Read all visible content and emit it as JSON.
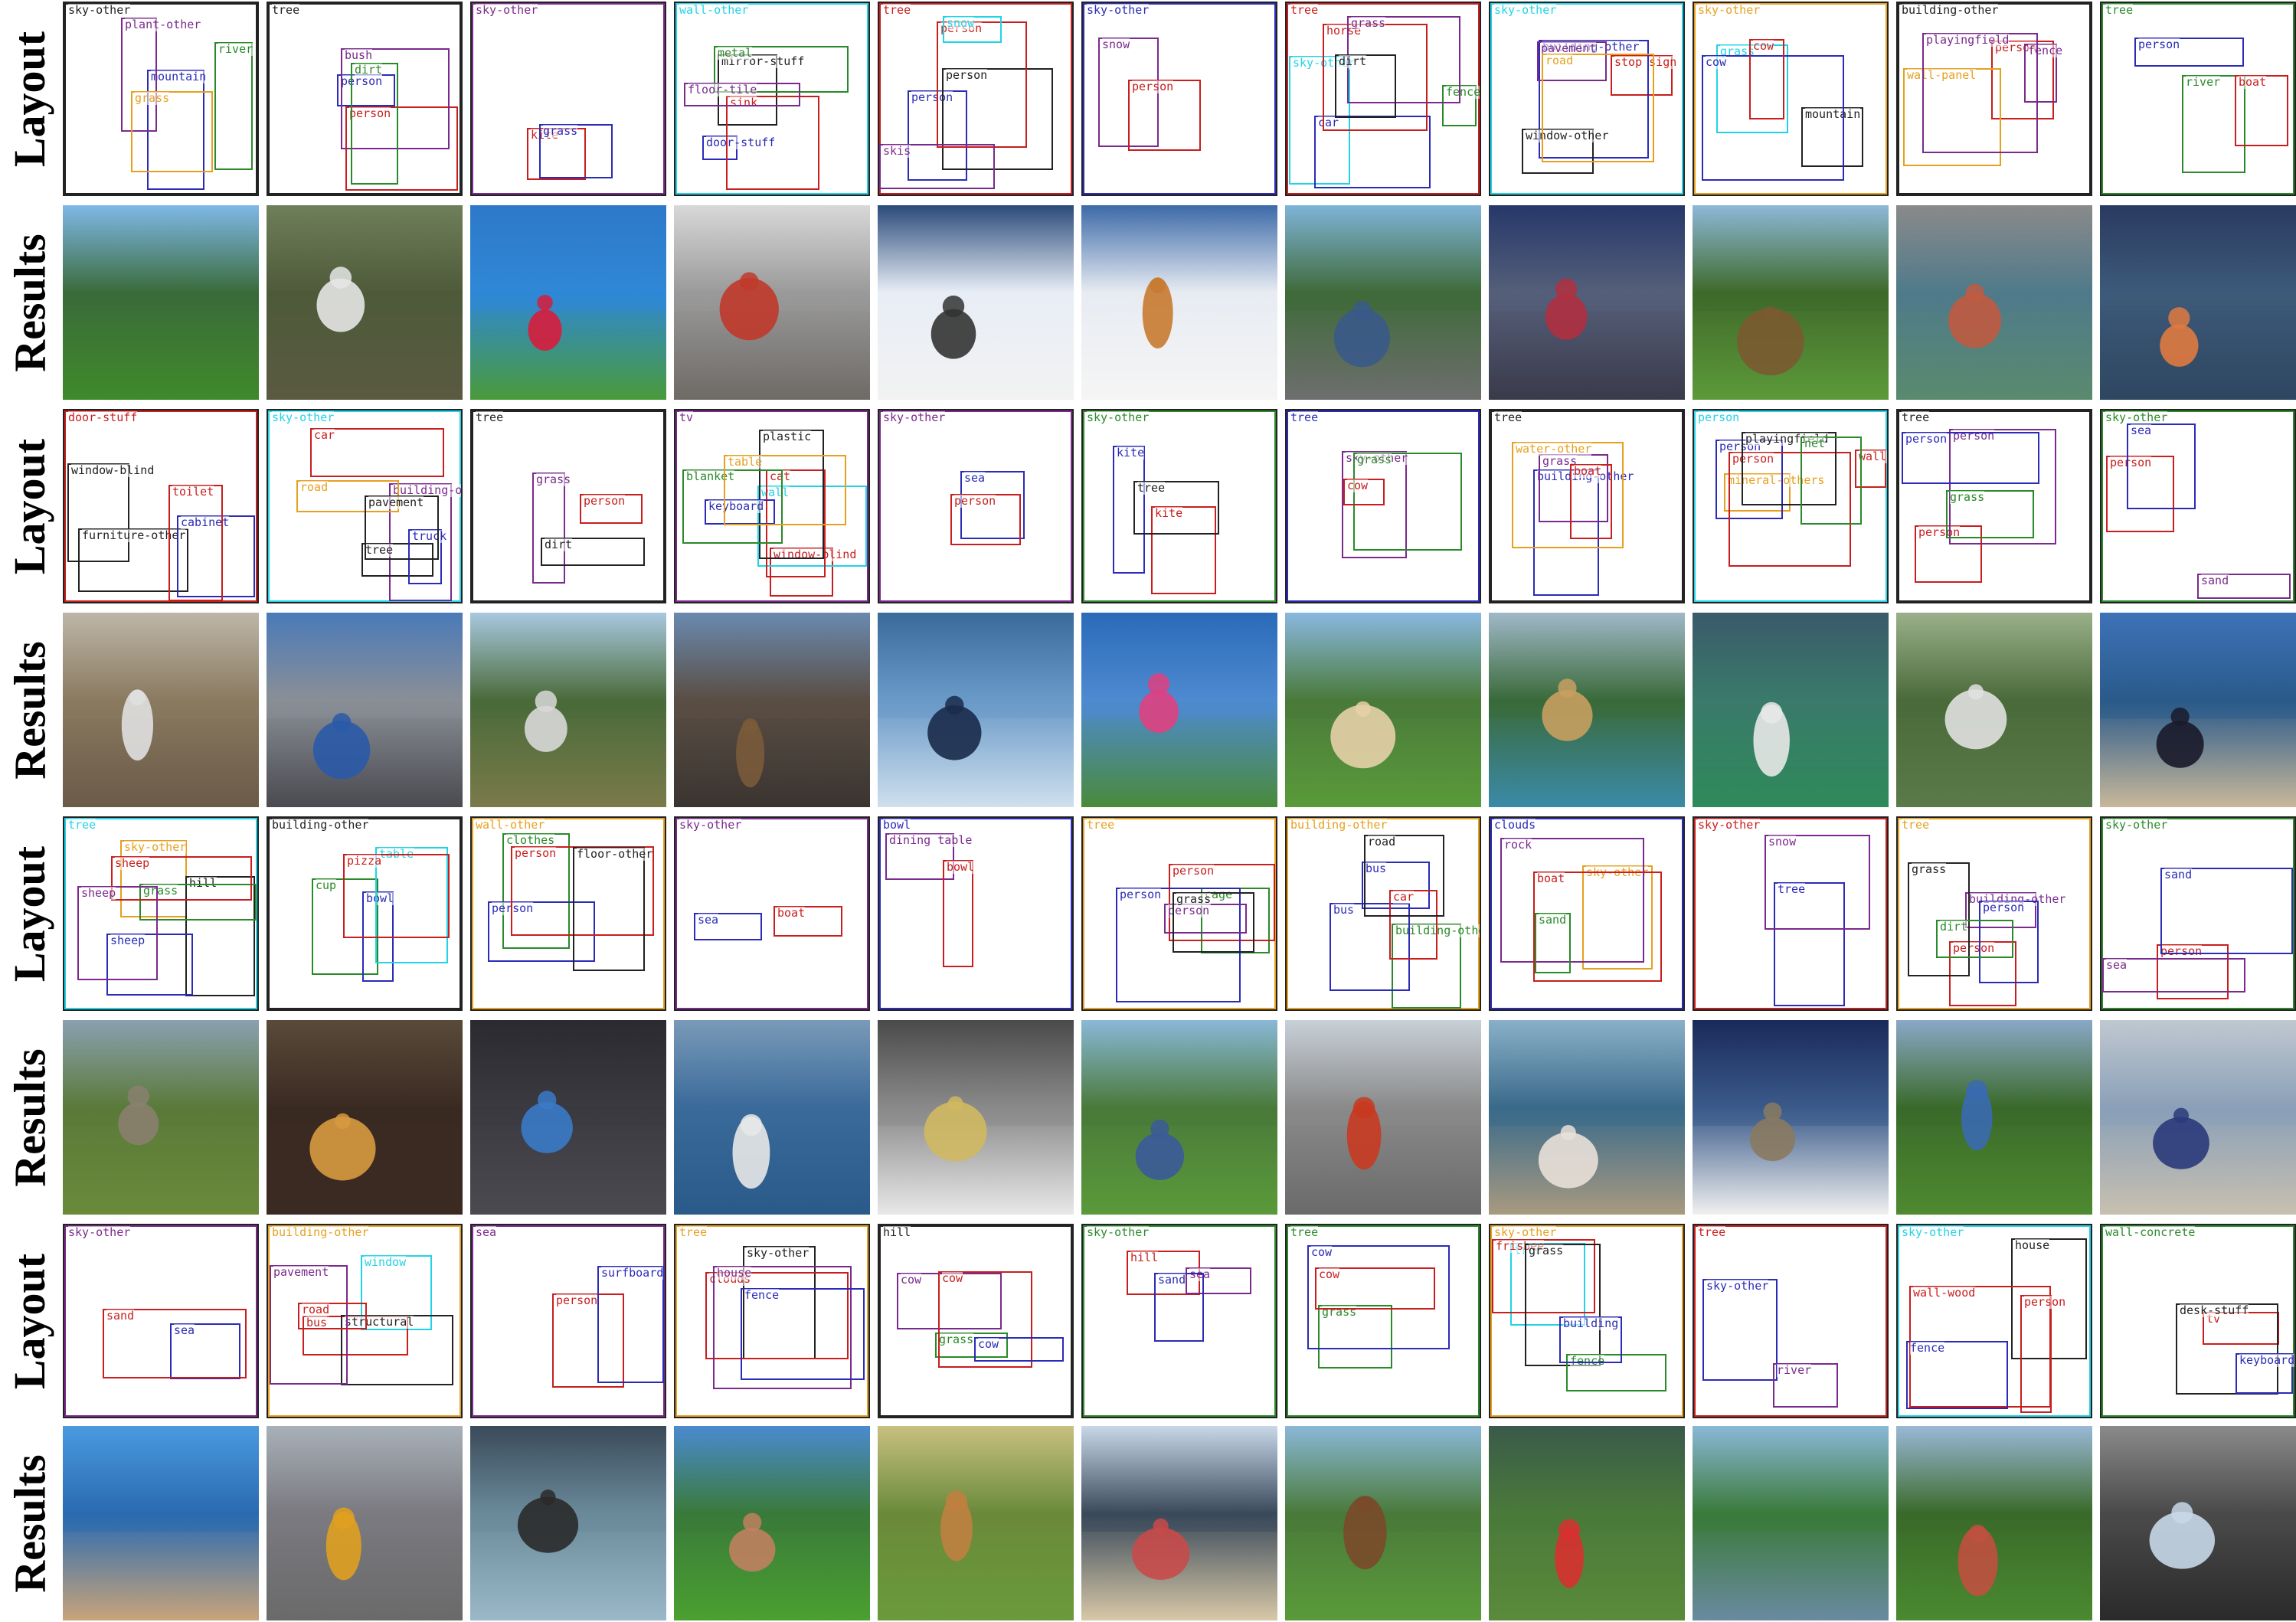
{
  "row_labels": [
    "Layout",
    "Results",
    "Layout",
    "Results",
    "Layout",
    "Results",
    "Layout",
    "Results"
  ],
  "colors": {
    "cyan": "#22d3e6",
    "red": "#c81e1e",
    "blue": "#2b2bb8",
    "purple": "#7a2a8c",
    "green": "#2a8a2a",
    "orange": "#e6a020",
    "black": "#222222"
  },
  "layouts": [
    [
      [
        [
          "sky-other",
          "black"
        ],
        [
          "mountain",
          "blue"
        ],
        [
          "plant-other",
          "purple"
        ],
        [
          "river",
          "green"
        ],
        [
          "grass",
          "orange"
        ]
      ],
      [
        [
          "tree",
          "black"
        ],
        [
          "person",
          "blue"
        ],
        [
          "person",
          "red"
        ],
        [
          "bush",
          "purple"
        ],
        [
          "dirt",
          "green"
        ]
      ],
      [
        [
          "sky-other",
          "purple"
        ],
        [
          "kite",
          "red"
        ],
        [
          "grass",
          "blue"
        ]
      ],
      [
        [
          "wall-other",
          "cyan"
        ],
        [
          "mirror-stuff",
          "black"
        ],
        [
          "door-stuff",
          "blue"
        ],
        [
          "metal",
          "green"
        ],
        [
          "sink",
          "red"
        ],
        [
          "floor-tile",
          "purple"
        ]
      ],
      [
        [
          "tree",
          "red"
        ],
        [
          "person",
          "blue"
        ],
        [
          "person",
          "black"
        ],
        [
          "person",
          "red"
        ],
        [
          "snow",
          "cyan"
        ],
        [
          "skis",
          "purple"
        ]
      ],
      [
        [
          "sky-other",
          "blue"
        ],
        [
          "snow",
          "purple"
        ],
        [
          "person",
          "red"
        ]
      ],
      [
        [
          "tree",
          "red"
        ],
        [
          "sky-other",
          "cyan"
        ],
        [
          "fence",
          "green"
        ],
        [
          "car",
          "blue"
        ],
        [
          "horse",
          "red"
        ],
        [
          "grass",
          "purple"
        ],
        [
          "dirt",
          "black"
        ]
      ],
      [
        [
          "sky-other",
          "cyan"
        ],
        [
          "stop sign",
          "red"
        ],
        [
          "building-other",
          "blue"
        ],
        [
          "window-other",
          "black"
        ],
        [
          "pavement",
          "purple"
        ],
        [
          "road",
          "orange"
        ]
      ],
      [
        [
          "sky-other",
          "orange"
        ],
        [
          "mountain",
          "black"
        ],
        [
          "grass",
          "cyan"
        ],
        [
          "cow",
          "blue"
        ],
        [
          "cow",
          "red"
        ]
      ],
      [
        [
          "building-other",
          "black"
        ],
        [
          "person",
          "red"
        ],
        [
          "fence",
          "purple"
        ],
        [
          "wall-panel",
          "orange"
        ],
        [
          "playingfield",
          "purple"
        ]
      ],
      [
        [
          "tree",
          "green"
        ],
        [
          "river",
          "green"
        ],
        [
          "person",
          "blue"
        ],
        [
          "boat",
          "red"
        ]
      ]
    ],
    [
      [
        [
          "door-stuff",
          "red"
        ],
        [
          "window-blind",
          "black"
        ],
        [
          "furniture-other",
          "black"
        ],
        [
          "cabinet",
          "blue"
        ],
        [
          "toilet",
          "red"
        ]
      ],
      [
        [
          "sky-other",
          "cyan"
        ],
        [
          "building-other",
          "purple"
        ],
        [
          "tree",
          "black"
        ],
        [
          "truck",
          "blue"
        ],
        [
          "car",
          "red"
        ],
        [
          "road",
          "orange"
        ],
        [
          "pavement",
          "black"
        ]
      ],
      [
        [
          "tree",
          "black"
        ],
        [
          "person",
          "red"
        ],
        [
          "grass",
          "purple"
        ],
        [
          "dirt",
          "black"
        ]
      ],
      [
        [
          "tv",
          "purple"
        ],
        [
          "window-blind",
          "red"
        ],
        [
          "wall",
          "cyan"
        ],
        [
          "cat",
          "red"
        ],
        [
          "plastic",
          "black"
        ],
        [
          "blanket",
          "green"
        ],
        [
          "keyboard",
          "blue"
        ],
        [
          "table",
          "orange"
        ]
      ],
      [
        [
          "sky-other",
          "purple"
        ],
        [
          "sea",
          "blue"
        ],
        [
          "person",
          "red"
        ]
      ],
      [
        [
          "sky-other",
          "green"
        ],
        [
          "kite",
          "red"
        ],
        [
          "kite",
          "blue"
        ],
        [
          "tree",
          "black"
        ]
      ],
      [
        [
          "tree",
          "blue"
        ],
        [
          "sky-other",
          "purple"
        ],
        [
          "grass",
          "green"
        ],
        [
          "cow",
          "red"
        ]
      ],
      [
        [
          "tree",
          "black"
        ],
        [
          "building-other",
          "blue"
        ],
        [
          "grass",
          "purple"
        ],
        [
          "water-other",
          "orange"
        ],
        [
          "boat",
          "red"
        ]
      ],
      [
        [
          "person",
          "cyan"
        ],
        [
          "mineral-others",
          "orange"
        ],
        [
          "wall-other",
          "red"
        ],
        [
          "person",
          "blue"
        ],
        [
          "person",
          "red"
        ],
        [
          "playingfield",
          "black"
        ],
        [
          "net",
          "green"
        ]
      ],
      [
        [
          "tree",
          "black"
        ],
        [
          "person",
          "red"
        ],
        [
          "person",
          "purple"
        ],
        [
          "person",
          "blue"
        ],
        [
          "grass",
          "green"
        ]
      ],
      [
        [
          "sky-other",
          "green"
        ],
        [
          "person",
          "red"
        ],
        [
          "sea",
          "blue"
        ],
        [
          "sand",
          "purple"
        ]
      ]
    ],
    [
      [
        [
          "tree",
          "cyan"
        ],
        [
          "sky-other",
          "orange"
        ],
        [
          "hill",
          "black"
        ],
        [
          "grass",
          "green"
        ],
        [
          "sheep",
          "red"
        ],
        [
          "sheep",
          "blue"
        ],
        [
          "sheep",
          "purple"
        ]
      ],
      [
        [
          "building-other",
          "black"
        ],
        [
          "cup",
          "green"
        ],
        [
          "bowl",
          "blue"
        ],
        [
          "table",
          "cyan"
        ],
        [
          "pizza",
          "red"
        ]
      ],
      [
        [
          "wall-other",
          "orange"
        ],
        [
          "clothes",
          "green"
        ],
        [
          "person",
          "blue"
        ],
        [
          "person",
          "red"
        ],
        [
          "floor-other",
          "black"
        ]
      ],
      [
        [
          "sky-other",
          "purple"
        ],
        [
          "sea",
          "blue"
        ],
        [
          "boat",
          "red"
        ]
      ],
      [
        [
          "bowl",
          "blue"
        ],
        [
          "dining table",
          "purple"
        ],
        [
          "bowl",
          "red"
        ]
      ],
      [
        [
          "tree",
          "orange"
        ],
        [
          "cage",
          "green"
        ],
        [
          "person",
          "red"
        ],
        [
          "person",
          "blue"
        ],
        [
          "person",
          "purple"
        ],
        [
          "grass",
          "black"
        ]
      ],
      [
        [
          "building-other",
          "orange"
        ],
        [
          "building-other",
          "green"
        ],
        [
          "bus",
          "blue"
        ],
        [
          "bus",
          "blue"
        ],
        [
          "car",
          "red"
        ],
        [
          "road",
          "black"
        ]
      ],
      [
        [
          "clouds",
          "blue"
        ],
        [
          "sky-other",
          "orange"
        ],
        [
          "rock",
          "purple"
        ],
        [
          "sand",
          "green"
        ],
        [
          "boat",
          "red"
        ]
      ],
      [
        [
          "sky-other",
          "red"
        ],
        [
          "tree",
          "blue"
        ],
        [
          "snow",
          "purple"
        ]
      ],
      [
        [
          "tree",
          "orange"
        ],
        [
          "building-other",
          "purple"
        ],
        [
          "person",
          "red"
        ],
        [
          "grass",
          "black"
        ],
        [
          "person",
          "blue"
        ],
        [
          "dirt",
          "green"
        ]
      ],
      [
        [
          "sky-other",
          "green"
        ],
        [
          "person",
          "red"
        ],
        [
          "sea",
          "purple"
        ],
        [
          "sand",
          "blue"
        ]
      ]
    ],
    [
      [
        [
          "sky-other",
          "purple"
        ],
        [
          "sea",
          "blue"
        ],
        [
          "sand",
          "red"
        ]
      ],
      [
        [
          "building-other",
          "orange"
        ],
        [
          "window",
          "cyan"
        ],
        [
          "bus",
          "red"
        ],
        [
          "structural",
          "black"
        ],
        [
          "pavement",
          "purple"
        ],
        [
          "road",
          "red"
        ]
      ],
      [
        [
          "sea",
          "purple"
        ],
        [
          "person",
          "red"
        ],
        [
          "surfboard",
          "blue"
        ]
      ],
      [
        [
          "tree",
          "orange"
        ],
        [
          "sky-other",
          "black"
        ],
        [
          "clouds",
          "red"
        ],
        [
          "house",
          "purple"
        ],
        [
          "fence",
          "blue"
        ]
      ],
      [
        [
          "hill",
          "black"
        ],
        [
          "grass",
          "green"
        ],
        [
          "cow",
          "purple"
        ],
        [
          "cow",
          "red"
        ],
        [
          "cow",
          "blue"
        ]
      ],
      [
        [
          "sky-other",
          "green"
        ],
        [
          "hill",
          "red"
        ],
        [
          "sea",
          "purple"
        ],
        [
          "sand",
          "blue"
        ]
      ],
      [
        [
          "tree",
          "green"
        ],
        [
          "grass",
          "green"
        ],
        [
          "cow",
          "blue"
        ],
        [
          "cow",
          "red"
        ]
      ],
      [
        [
          "sky-other",
          "orange"
        ],
        [
          "tree",
          "cyan"
        ],
        [
          "frisbee",
          "red"
        ],
        [
          "grass",
          "black"
        ],
        [
          "fence",
          "green"
        ],
        [
          "building",
          "blue"
        ]
      ],
      [
        [
          "tree",
          "red"
        ],
        [
          "sky-other",
          "blue"
        ],
        [
          "river",
          "purple"
        ]
      ],
      [
        [
          "sky-other",
          "cyan"
        ],
        [
          "house",
          "black"
        ],
        [
          "wall-wood",
          "red"
        ],
        [
          "fence",
          "blue"
        ],
        [
          "person",
          "red"
        ]
      ],
      [
        [
          "wall-concrete",
          "green"
        ],
        [
          "tv",
          "red"
        ],
        [
          "desk-stuff",
          "black"
        ],
        [
          "keyboard",
          "blue"
        ]
      ]
    ]
  ],
  "photos": [
    [
      {
        "sky": "#7fb8e8",
        "mid": "#3a6b3a",
        "ground": "#3f8a2a",
        "subject": ""
      },
      {
        "sky": "#6f7f5a",
        "mid": "#4e5a3a",
        "ground": "#5a5a40",
        "subject": "#e6e6e6"
      },
      {
        "sky": "#2e78c9",
        "mid": "#2f88d6",
        "ground": "#4a9a3a",
        "subject": "#d81c3c"
      },
      {
        "sky": "#d8d8d8",
        "mid": "#9a9a9a",
        "ground": "#6e6a66",
        "subject": "#c0392b"
      },
      {
        "sky": "#2a4a7a",
        "mid": "#e8eef6",
        "ground": "#f2f2f2",
        "subject": "#333333"
      },
      {
        "sky": "#3c6aa8",
        "mid": "#e8ecf2",
        "ground": "#f5f5f5",
        "subject": "#c87a30"
      },
      {
        "sky": "#7fb4d8",
        "mid": "#3f6a3a",
        "ground": "#6e6e6e",
        "subject": "#3a5a8a"
      },
      {
        "sky": "#26386a",
        "mid": "#555f7a",
        "ground": "#3a3a4a",
        "subject": "#b03040"
      },
      {
        "sky": "#8eb8d8",
        "mid": "#3e6a2a",
        "ground": "#5d9a3a",
        "subject": "#7a5a30"
      },
      {
        "sky": "#8a8a8a",
        "mid": "#4f7a8a",
        "ground": "#5a8a6e",
        "subject": "#c05a40"
      },
      {
        "sky": "#2a3a60",
        "mid": "#3d5a7a",
        "ground": "#2e4660",
        "subject": "#e07a40"
      }
    ],
    [
      {
        "sky": "#bdb6a8",
        "mid": "#8a7a60",
        "ground": "#6a5a48",
        "subject": "#e0e0e0"
      },
      {
        "sky": "#4a7ab8",
        "mid": "#8a8f96",
        "ground": "#4a4a50",
        "subject": "#2a5aa8"
      },
      {
        "sky": "#a8c8e0",
        "mid": "#4a6a3a",
        "ground": "#7a7a4a",
        "subject": "#d8d8d8"
      },
      {
        "sky": "#6a8ab0",
        "mid": "#5a4e44",
        "ground": "#3a3430",
        "subject": "#7a5a3a"
      },
      {
        "sky": "#3a6a9a",
        "mid": "#6a9ac8",
        "ground": "#cfe0ee",
        "subject": "#1a2a4a"
      },
      {
        "sky": "#2a6ab8",
        "mid": "#4e8ad0",
        "ground": "#4a8a3a",
        "subject": "#e04080"
      },
      {
        "sky": "#8ab8e0",
        "mid": "#4a7a3a",
        "ground": "#5a9a3a",
        "subject": "#e6d0a8"
      },
      {
        "sky": "#a0b8c8",
        "mid": "#3a6a3a",
        "ground": "#3a8aa8",
        "subject": "#c8a060"
      },
      {
        "sky": "#3a5a6a",
        "mid": "#3a7a6a",
        "ground": "#2e8a5a",
        "subject": "#e8e8e8"
      },
      {
        "sky": "#9ab08a",
        "mid": "#4a6a3a",
        "ground": "#5a7a4a",
        "subject": "#e0e0e0"
      },
      {
        "sky": "#3e72b8",
        "mid": "#2a5a8a",
        "ground": "#c8b89a",
        "subject": "#1a1a2a"
      }
    ],
    [
      {
        "sky": "#8aa0b0",
        "mid": "#5a7a3a",
        "ground": "#6a8a3a",
        "subject": "#8a8070"
      },
      {
        "sky": "#5a4a3a",
        "mid": "#3a2a22",
        "ground": "#3a2a22",
        "subject": "#d89a40"
      },
      {
        "sky": "#2a2a30",
        "mid": "#3a3a40",
        "ground": "#4a4a50",
        "subject": "#3a7ac8"
      },
      {
        "sky": "#7a9ab8",
        "mid": "#3a6a9a",
        "ground": "#2a5a8a",
        "subject": "#e8e8e8"
      },
      {
        "sky": "#4a4a4a",
        "mid": "#8a8a8a",
        "ground": "#e8e8e8",
        "subject": "#d0b860"
      },
      {
        "sky": "#8ab8d8",
        "mid": "#4a7a3a",
        "ground": "#5a9a3a",
        "subject": "#3a5a9a"
      },
      {
        "sky": "#c8d0d8",
        "mid": "#8a8a8a",
        "ground": "#6a6a6a",
        "subject": "#c83a20"
      },
      {
        "sky": "#8ab0c8",
        "mid": "#3a6a8a",
        "ground": "#a89a80",
        "subject": "#e8e0d8"
      },
      {
        "sky": "#1a2a5a",
        "mid": "#3a5a8a",
        "ground": "#f0f0f0",
        "subject": "#8a7a60"
      },
      {
        "sky": "#8aa8c8",
        "mid": "#3a6a2a",
        "ground": "#4e8a30",
        "subject": "#3a6ab0"
      },
      {
        "sky": "#c0c8d0",
        "mid": "#8aa0b8",
        "ground": "#c8c0b0",
        "subject": "#2a3a7a"
      }
    ],
    [
      {
        "sky": "#4a9ae0",
        "mid": "#2a6ab0",
        "ground": "#c8a47a",
        "subject": ""
      },
      {
        "sky": "#a8b0b8",
        "mid": "#7a7a80",
        "ground": "#6a6a6a",
        "subject": "#e0a020"
      },
      {
        "sky": "#3a4a5a",
        "mid": "#6a8a9a",
        "ground": "#9ab8c8",
        "subject": "#2a2a2a"
      },
      {
        "sky": "#4a8ad0",
        "mid": "#3a7a3a",
        "ground": "#4aa030",
        "subject": "#c08060"
      },
      {
        "sky": "#c8c080",
        "mid": "#6a8a3a",
        "ground": "#6a9a3a",
        "subject": "#c08040"
      },
      {
        "sky": "#c8d8e8",
        "mid": "#3a4a5a",
        "ground": "#d8c8a8",
        "subject": "#c84a4a"
      },
      {
        "sky": "#8ab8d8",
        "mid": "#4a7a3a",
        "ground": "#5a9a3a",
        "subject": "#7a4a2a"
      },
      {
        "sky": "#3a5a4a",
        "mid": "#4a7a3a",
        "ground": "#5a8a3a",
        "subject": "#d83030"
      },
      {
        "sky": "#8ab8d8",
        "mid": "#3a7a3a",
        "ground": "#6a8aa0",
        "subject": ""
      },
      {
        "sky": "#9ab8d8",
        "mid": "#3a6a2a",
        "ground": "#4a8a30",
        "subject": "#c05040"
      },
      {
        "sky": "#8a8a8a",
        "mid": "#4a4a4a",
        "ground": "#2a2a2a",
        "subject": "#c8d8e8"
      }
    ]
  ]
}
